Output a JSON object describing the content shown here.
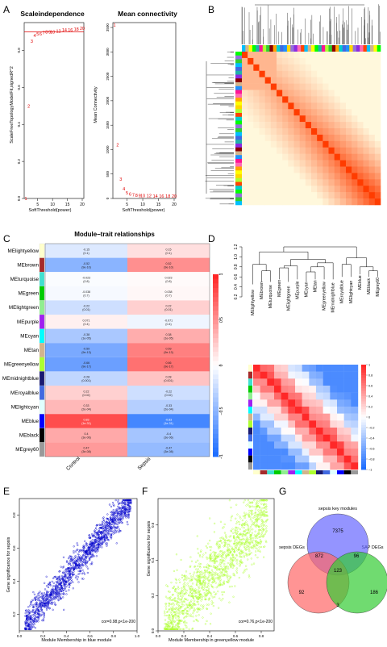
{
  "panels": {
    "A": {
      "letter": "A",
      "sft": {
        "title": "Scaleindependence",
        "xlabel": "SoftThreshold(power)",
        "ylabel": "ScaleFreeTopologyModelFit,signedR^2",
        "xticks": [
          "5",
          "10",
          "15",
          "20"
        ],
        "yticks": [
          "0.0",
          "0.2",
          "0.4",
          "0.6",
          "0.8"
        ],
        "points": [
          {
            "x": 1,
            "y": 0.0
          },
          {
            "x": 2,
            "y": 0.5
          },
          {
            "x": 3,
            "y": 0.85
          },
          {
            "x": 4,
            "y": 0.88
          },
          {
            "x": 5,
            "y": 0.89
          },
          {
            "x": 6,
            "y": 0.89
          },
          {
            "x": 7,
            "y": 0.895
          },
          {
            "x": 8,
            "y": 0.9
          },
          {
            "x": 9,
            "y": 0.9
          },
          {
            "x": 10,
            "y": 0.9
          },
          {
            "x": 12,
            "y": 0.905
          },
          {
            "x": 14,
            "y": 0.91
          },
          {
            "x": 16,
            "y": 0.91
          },
          {
            "x": 18,
            "y": 0.915
          },
          {
            "x": 20,
            "y": 0.92
          }
        ],
        "cutoff": 0.9
      },
      "mc": {
        "title": "Mean connectivity",
        "xlabel": "SoftThreshold(power)",
        "ylabel": "Mean Connectivity",
        "xticks": [
          "5",
          "10",
          "15",
          "20"
        ],
        "yticks": [
          "0",
          "500",
          "1000",
          "1500",
          "2000",
          "2500",
          "3000",
          "3500"
        ],
        "points": [
          {
            "x": 1,
            "y": 3500
          },
          {
            "x": 2,
            "y": 1050
          },
          {
            "x": 3,
            "y": 350
          },
          {
            "x": 4,
            "y": 150
          },
          {
            "x": 5,
            "y": 70
          },
          {
            "x": 6,
            "y": 40
          },
          {
            "x": 7,
            "y": 25
          },
          {
            "x": 8,
            "y": 15
          },
          {
            "x": 9,
            "y": 10
          },
          {
            "x": 10,
            "y": 8
          },
          {
            "x": 12,
            "y": 5
          },
          {
            "x": 14,
            "y": 3
          },
          {
            "x": 16,
            "y": 2
          },
          {
            "x": 18,
            "y": 1
          },
          {
            "x": 20,
            "y": 1
          }
        ]
      }
    },
    "B": {
      "letter": "B"
    },
    "C": {
      "letter": "C",
      "title": "Module–trait relationships",
      "columns": [
        "Control",
        "Sepsis"
      ],
      "scale": [
        "1",
        "0.5",
        "0",
        "−0.5",
        "−1"
      ],
      "modules": [
        {
          "name": "MElightyellow",
          "color": "#ffffcc",
          "values": [
            -0.15,
            0.15
          ],
          "labels": [
            "-0.15\n(0.1)",
            "0.15\n(0.1)"
          ]
        },
        {
          "name": "MEbrown",
          "color": "#a52a2a",
          "values": [
            -0.52,
            0.52
          ],
          "labels": [
            "-0.52\n(9e-10)",
            "0.52\n(9e-10)"
          ]
        },
        {
          "name": "MEturquoise",
          "color": "#40e0d0",
          "values": [
            -0.023,
            0.023
          ],
          "labels": [
            "-0.023\n(0.8)",
            "0.023\n(0.8)"
          ]
        },
        {
          "name": "MEgreen",
          "color": "#00cc00",
          "values": [
            -0.038,
            0.038
          ],
          "labels": [
            "-0.038\n(0.7)",
            "0.038\n(0.7)"
          ]
        },
        {
          "name": "MElightgreen",
          "color": "#90ee90",
          "values": [
            -0.22,
            0.22
          ],
          "labels": [
            "-0.22\n(0.01)",
            "0.22\n(0.01)"
          ]
        },
        {
          "name": "MEpurple",
          "color": "#a020f0",
          "values": [
            0.071,
            -0.071
          ],
          "labels": [
            "0.071\n(0.4)",
            "-0.071\n(0.4)"
          ]
        },
        {
          "name": "MEcyan",
          "color": "#00ffff",
          "values": [
            -0.38,
            0.38
          ],
          "labels": [
            "-0.38\n(1e-05)",
            "0.38\n(1e-05)"
          ]
        },
        {
          "name": "MEtan",
          "color": "#d2b48c",
          "values": [
            -0.59,
            0.59
          ],
          "labels": [
            "-0.59\n(9e-13)",
            "0.59\n(9e-13)"
          ]
        },
        {
          "name": "MEgreenyellow",
          "color": "#adff2f",
          "values": [
            -0.66,
            0.66
          ],
          "labels": [
            "-0.66\n(9e-17)",
            "0.66\n(9e-17)"
          ]
        },
        {
          "name": "MEmidnightblue",
          "color": "#191970",
          "values": [
            -0.28,
            0.28
          ],
          "labels": [
            "-0.28\n(0.001)",
            "0.28\n(0.001)"
          ]
        },
        {
          "name": "MEroyalblue",
          "color": "#4169e1",
          "values": [
            0.22,
            -0.22
          ],
          "labels": [
            "0.22\n(0.02)",
            "-0.22\n(0.02)"
          ]
        },
        {
          "name": "MElightcyan",
          "color": "#e0ffff",
          "values": [
            0.33,
            -0.33
          ],
          "labels": [
            "0.33\n(2e-04)",
            "-0.33\n(2e-04)"
          ]
        },
        {
          "name": "MEblue",
          "color": "#0000ff",
          "values": [
            0.83,
            -0.83
          ],
          "labels": [
            "0.83\n(1e-31)",
            "-0.83\n(1e-31)"
          ]
        },
        {
          "name": "MEblack",
          "color": "#000000",
          "values": [
            0.4,
            -0.4
          ],
          "labels": [
            "0.4\n(3e-06)",
            "-0.4\n(3e-06)"
          ]
        },
        {
          "name": "MEgrey60",
          "color": "#999999",
          "values": [
            0.47,
            -0.47
          ],
          "labels": [
            "0.47\n(3e-08)",
            "-0.47\n(3e-08)"
          ]
        }
      ]
    },
    "D": {
      "letter": "D",
      "yticks": [
        "0.2",
        "0.4",
        "0.6",
        "0.8",
        "1.0",
        "1.2"
      ],
      "leaves": [
        "MElightyellow",
        "MEbrown",
        "MEturquoise",
        "MEgreen",
        "MElightgreen",
        "MEpurple",
        "MEcyan",
        "MEtan",
        "MEgreenyellow",
        "MEmidnightblue",
        "MEroyalblue",
        "MElightcyan",
        "MEblue",
        "MEblack",
        "MEgrey60"
      ],
      "leaf_colors": [
        "#ffffcc",
        "#a52a2a",
        "#40e0d0",
        "#00cc00",
        "#90ee90",
        "#a020f0",
        "#00ffff",
        "#d2b48c",
        "#adff2f",
        "#191970",
        "#4169e1",
        "#e0ffff",
        "#0000ff",
        "#000000",
        "#999999"
      ],
      "scale": [
        "1",
        "0.8",
        "0.6",
        "0.4",
        "0.2",
        "0",
        "−0.2",
        "−0.4",
        "−0.6",
        "−0.8",
        "−1"
      ]
    },
    "E": {
      "letter": "E",
      "xlabel": "Module Membership in blue module",
      "ylabel": "Gene significance for sepsis",
      "annotation": "cor=0.98,p<1e-200",
      "color": "#0000cc",
      "xticks": [
        "0.0",
        "0.2",
        "0.4",
        "0.6",
        "0.8",
        "1.0"
      ],
      "yticks": [
        "0.2",
        "0.4",
        "0.6",
        "0.8"
      ],
      "cor": 0.98
    },
    "F": {
      "letter": "F",
      "xlabel": "Module Membership in greenyellow module",
      "ylabel": "Gene significance for sepsis",
      "annotation": "cor=0.76,p<1e-200",
      "color": "#adff2f",
      "xticks": [
        "0.0",
        "0.2",
        "0.4",
        "0.6",
        "0.8"
      ],
      "yticks": [
        "0.0",
        "0.2",
        "0.4",
        "0.6"
      ],
      "cor": 0.76
    },
    "G": {
      "letter": "G",
      "sets": [
        "sepsis key modules",
        "sepsis DEGs",
        "SAP DEGs"
      ],
      "regions": {
        "top_only": "7375",
        "left_top": "872",
        "right_top": "96",
        "center": "123",
        "left_only": "92",
        "right_only": "186",
        "left_right": "3"
      },
      "colors": {
        "top": "#6666ff",
        "left": "#ff6666",
        "right": "#33cc33"
      }
    }
  },
  "chart_data": [
    {
      "type": "scatter",
      "title": "Scaleindependence",
      "xlabel": "SoftThreshold(power)",
      "ylabel": "ScaleFreeTopologyModelFit,signedR^2",
      "x": [
        1,
        2,
        3,
        4,
        5,
        6,
        7,
        8,
        9,
        10,
        12,
        14,
        16,
        18,
        20
      ],
      "y": [
        0.0,
        0.5,
        0.85,
        0.88,
        0.89,
        0.89,
        0.895,
        0.9,
        0.9,
        0.9,
        0.905,
        0.91,
        0.91,
        0.915,
        0.92
      ],
      "xlim": [
        1,
        20
      ],
      "ylim": [
        0,
        0.95
      ]
    },
    {
      "type": "scatter",
      "title": "Mean connectivity",
      "xlabel": "SoftThreshold(power)",
      "ylabel": "Mean Connectivity",
      "x": [
        1,
        2,
        3,
        4,
        5,
        6,
        7,
        8,
        9,
        10,
        12,
        14,
        16,
        18,
        20
      ],
      "y": [
        3500,
        1050,
        350,
        150,
        70,
        40,
        25,
        15,
        10,
        8,
        5,
        3,
        2,
        1,
        1
      ],
      "xlim": [
        1,
        20
      ],
      "ylim": [
        0,
        3600
      ]
    },
    {
      "type": "heatmap",
      "title": "Module–trait relationships",
      "columns": [
        "Control",
        "Sepsis"
      ],
      "rows": [
        "MElightyellow",
        "MEbrown",
        "MEturquoise",
        "MEgreen",
        "MElightgreen",
        "MEpurple",
        "MEcyan",
        "MEtan",
        "MEgreenyellow",
        "MEmidnightblue",
        "MEroyalblue",
        "MElightcyan",
        "MEblue",
        "MEblack",
        "MEgrey60"
      ],
      "values": [
        [
          -0.15,
          0.15
        ],
        [
          -0.52,
          0.52
        ],
        [
          -0.023,
          0.023
        ],
        [
          -0.038,
          0.038
        ],
        [
          -0.22,
          0.22
        ],
        [
          0.071,
          -0.071
        ],
        [
          -0.38,
          0.38
        ],
        [
          -0.59,
          0.59
        ],
        [
          -0.66,
          0.66
        ],
        [
          -0.28,
          0.28
        ],
        [
          0.22,
          -0.22
        ],
        [
          0.33,
          -0.33
        ],
        [
          0.83,
          -0.83
        ],
        [
          0.4,
          -0.4
        ],
        [
          0.47,
          -0.47
        ]
      ]
    },
    {
      "type": "scatter",
      "xlabel": "Module Membership in blue module",
      "ylabel": "Gene significance for sepsis",
      "annotation": "cor=0.98,p<1e-200",
      "xlim": [
        0,
        1
      ],
      "ylim": [
        0.1,
        0.9
      ]
    },
    {
      "type": "scatter",
      "xlabel": "Module Membership in greenyellow module",
      "ylabel": "Gene significance for sepsis",
      "annotation": "cor=0.76,p<1e-200",
      "xlim": [
        0,
        0.9
      ],
      "ylim": [
        0,
        0.75
      ]
    }
  ]
}
